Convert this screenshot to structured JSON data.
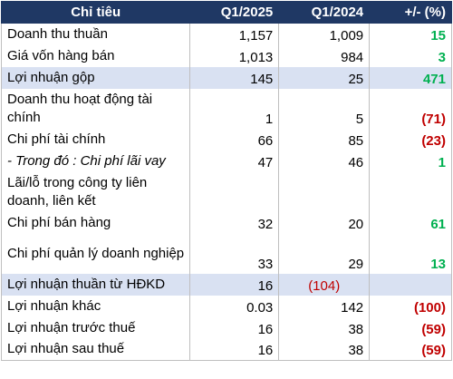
{
  "table": {
    "headers": {
      "name": "Chỉ tiêu",
      "q1_2025": "Q1/2025",
      "q1_2024": "Q1/2024",
      "change": "+/- (%)"
    },
    "rows": [
      {
        "name": "Doanh thu thuần",
        "q1_2025": "1,157",
        "q1_2024": "1,009",
        "change": "15"
      },
      {
        "name": "Giá vốn hàng bán",
        "q1_2025": "1,013",
        "q1_2024": "984",
        "change": "3"
      },
      {
        "name": "Lợi nhuận gộp",
        "q1_2025": "145",
        "q1_2024": "25",
        "change": "471"
      },
      {
        "name": "Doanh thu hoạt động tài chính",
        "q1_2025": "1",
        "q1_2024": "5",
        "change": "(71)"
      },
      {
        "name": "Chi phí tài chính",
        "q1_2025": "66",
        "q1_2024": "85",
        "change": "(23)"
      },
      {
        "name": "- Trong đó : Chi phí lãi vay",
        "q1_2025": "47",
        "q1_2024": "46",
        "change": "1"
      },
      {
        "name": "Lãi/lỗ trong công ty liên doanh, liên kết",
        "q1_2025": "",
        "q1_2024": "",
        "change": ""
      },
      {
        "name": "Chi phí bán hàng",
        "q1_2025": "32",
        "q1_2024": "20",
        "change": "61"
      },
      {
        "name": "Chi phí quản lý doanh nghiệp",
        "q1_2025": "33",
        "q1_2024": "29",
        "change": "13"
      },
      {
        "name": "Lợi nhuận thuần từ HĐKD",
        "q1_2025": "16",
        "q1_2024": "(104)",
        "change": ""
      },
      {
        "name": "Lợi nhuận khác",
        "q1_2025": "0.03",
        "q1_2024": "142",
        "change": "(100)"
      },
      {
        "name": "Lợi nhuận trước thuế",
        "q1_2025": "16",
        "q1_2024": "38",
        "change": "(59)"
      },
      {
        "name": "Lợi nhuận sau thuế",
        "q1_2025": "16",
        "q1_2024": "38",
        "change": "(59)"
      }
    ]
  },
  "colors": {
    "header_bg": "#1f3864",
    "highlight_bg": "#d9e1f2",
    "positive": "#00b050",
    "negative": "#c00000"
  }
}
